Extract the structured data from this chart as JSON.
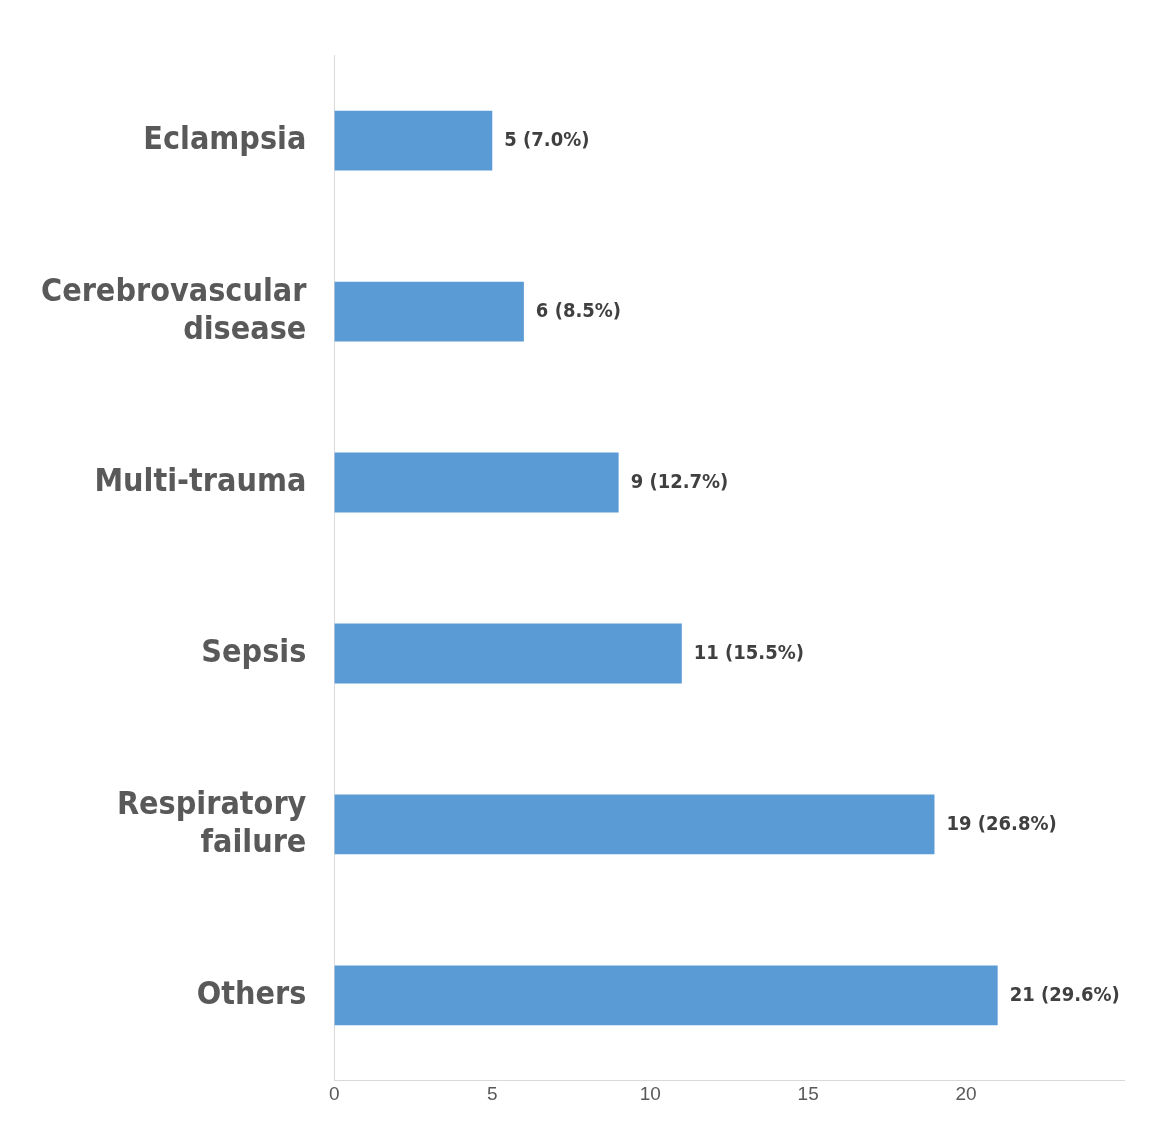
{
  "chart_data": {
    "type": "bar",
    "orientation": "horizontal",
    "categories": [
      "Eclampsia",
      "Cerebrovascular disease",
      "Multi-trauma",
      "Sepsis",
      "Respiratory failure",
      "Others"
    ],
    "values": [
      5,
      6,
      9,
      11,
      19,
      21
    ],
    "value_labels": [
      "5 (7.0%)",
      "6 (8.5%)",
      "9 (12.7%)",
      "11 (15.5%)",
      "19 (26.8%)",
      "21 (29.6%)"
    ],
    "color": "#5b9bd5",
    "xlim": [
      0,
      25
    ],
    "xticks": [
      0,
      5,
      10,
      15,
      20
    ],
    "grid": false,
    "legend": false
  }
}
